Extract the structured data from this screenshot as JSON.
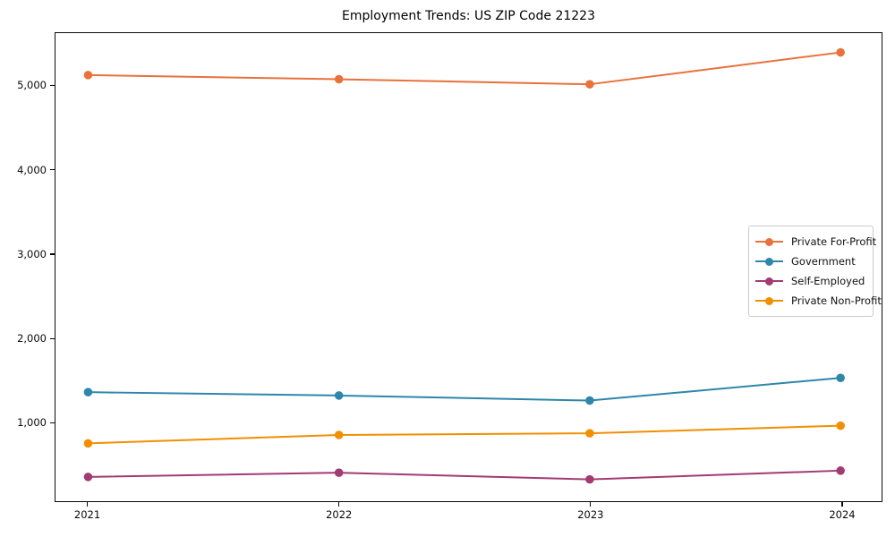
{
  "chart_data": {
    "type": "line",
    "title": "Employment Trends: US ZIP Code 21223",
    "xlabel": "",
    "ylabel": "",
    "x": [
      2021,
      2022,
      2023,
      2024
    ],
    "x_tick_labels": [
      "2021",
      "2022",
      "2023",
      "2024"
    ],
    "series": [
      {
        "name": "Private For-Profit",
        "color": "#E8713C",
        "values": [
          5130,
          5080,
          5020,
          5400
        ]
      },
      {
        "name": "Government",
        "color": "#2E86AB",
        "values": [
          1350,
          1310,
          1250,
          1520
        ]
      },
      {
        "name": "Self-Employed",
        "color": "#A23B72",
        "values": [
          340,
          390,
          310,
          415
        ]
      },
      {
        "name": "Private Non-Profit",
        "color": "#F18F01",
        "values": [
          740,
          840,
          860,
          950
        ]
      }
    ],
    "y_ticks": [
      1000,
      2000,
      3000,
      4000,
      5000
    ],
    "y_tick_labels": [
      "1,000",
      "2,000",
      "3,000",
      "4,000",
      "5,000"
    ],
    "ylim": [
      61,
      5630
    ],
    "xlim": [
      2020.87,
      2024.16
    ],
    "grid": false,
    "marker": "circle",
    "legend_position": "center right",
    "frame_color": "#0a0a0a",
    "background_color": "#ffffff"
  }
}
